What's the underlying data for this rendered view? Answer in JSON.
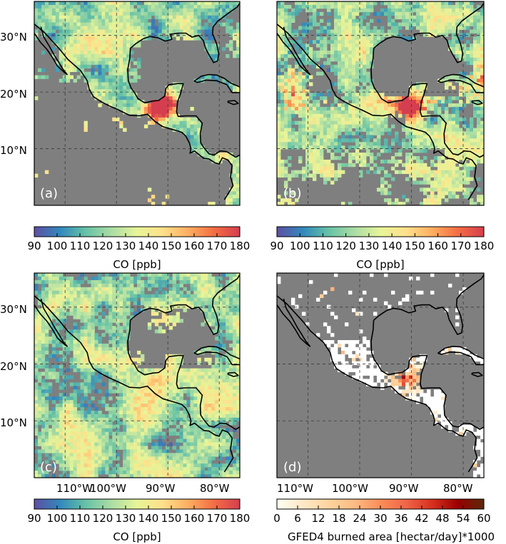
{
  "figure": {
    "panels": [
      {
        "letter": "(a)",
        "variable": "CO",
        "cmap": "co"
      },
      {
        "letter": "(b)",
        "variable": "CO",
        "cmap": "co"
      },
      {
        "letter": "(c)",
        "variable": "CO",
        "cmap": "co"
      },
      {
        "letter": "(d)",
        "variable": "GFED4 burned area",
        "cmap": "gfed"
      }
    ],
    "lat_ticks": [
      "30°N",
      "20°N",
      "10°N"
    ],
    "lon_ticks": [
      "110°W",
      "100°W",
      "90°W",
      "80°W"
    ],
    "colorbars": [
      {
        "label": "CO [ppb]",
        "ticks": [
          "90",
          "100",
          "110",
          "120",
          "130",
          "140",
          "150",
          "160",
          "170",
          "180"
        ],
        "range": [
          90,
          180
        ]
      },
      {
        "label": "CO [ppb]",
        "ticks": [
          "90",
          "100",
          "110",
          "120",
          "130",
          "140",
          "150",
          "160",
          "170",
          "180"
        ],
        "range": [
          90,
          180
        ]
      },
      {
        "label": "CO [ppb]",
        "ticks": [
          "90",
          "100",
          "110",
          "120",
          "130",
          "140",
          "150",
          "160",
          "170",
          "180"
        ],
        "range": [
          90,
          180
        ]
      },
      {
        "label": "GFED4 burned area [hectar/day]*1000",
        "ticks": [
          "0",
          "6",
          "12",
          "18",
          "24",
          "30",
          "36",
          "42",
          "48",
          "54",
          "60"
        ],
        "range": [
          0,
          60
        ]
      }
    ],
    "colors": {
      "ocean_nodata": "#7f7f7f",
      "coast": "#000000",
      "co_scale": [
        "#5e4fa2",
        "#3288bd",
        "#66c2a5",
        "#abdda4",
        "#e6f598",
        "#fee08b",
        "#fdae61",
        "#f46d43",
        "#d53e4f"
      ],
      "gfed_scale": [
        "#fffff0",
        "#fee8c8",
        "#fdd49e",
        "#fdbb84",
        "#fc8d59",
        "#ef6548",
        "#d7301f",
        "#990000",
        "#5a2a0a"
      ]
    }
  }
}
